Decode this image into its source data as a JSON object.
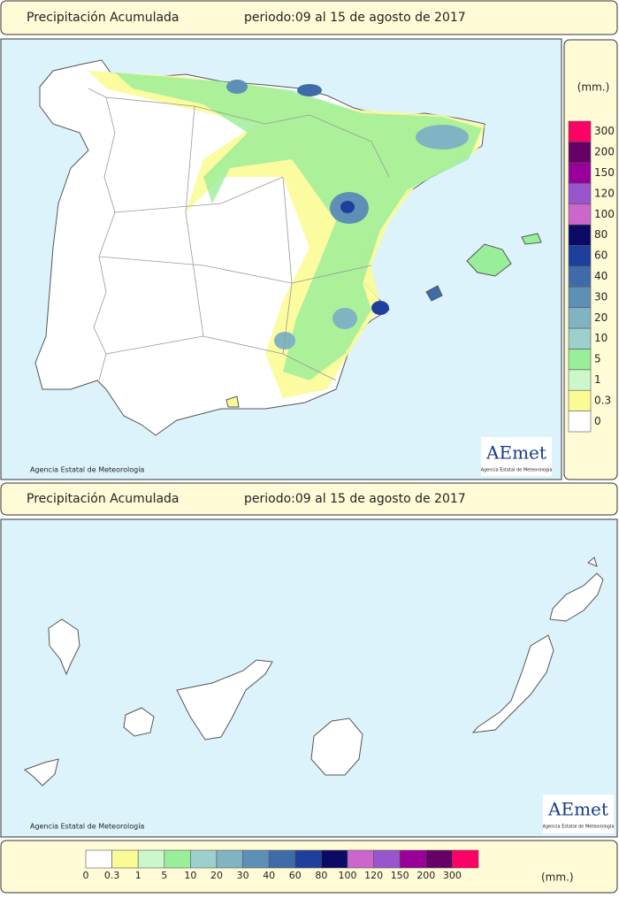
{
  "panels": [
    {
      "title": "Precipitación Acumulada",
      "period": "periodo:09 al 15 de agosto de 2017",
      "credit": "Agencia Estatal de Meteorología"
    },
    {
      "title": "Precipitación Acumulada",
      "period": "periodo:09 al 15 de agosto de 2017",
      "credit": "Agencia Estatal de Meteorología"
    }
  ],
  "logo": {
    "name": "AEmet",
    "subtitle": "Agencia Estatal de Meteorología"
  },
  "legend": {
    "unit": "(mm.)",
    "items": [
      {
        "label": "0",
        "color": "#ffffff"
      },
      {
        "label": "0.3",
        "color": "#fbfb96"
      },
      {
        "label": "1",
        "color": "#ccf7cc"
      },
      {
        "label": "5",
        "color": "#99ee99"
      },
      {
        "label": "10",
        "color": "#9cd0cc"
      },
      {
        "label": "20",
        "color": "#80b4c2"
      },
      {
        "label": "30",
        "color": "#5e8fb6"
      },
      {
        "label": "40",
        "color": "#3f6ca8"
      },
      {
        "label": "60",
        "color": "#1f3f9c"
      },
      {
        "label": "80",
        "color": "#0b0b66"
      },
      {
        "label": "100",
        "color": "#cc66cc"
      },
      {
        "label": "120",
        "color": "#9955cc"
      },
      {
        "label": "150",
        "color": "#990099"
      },
      {
        "label": "200",
        "color": "#660066"
      },
      {
        "label": "300",
        "color": "#ff0066"
      }
    ]
  }
}
